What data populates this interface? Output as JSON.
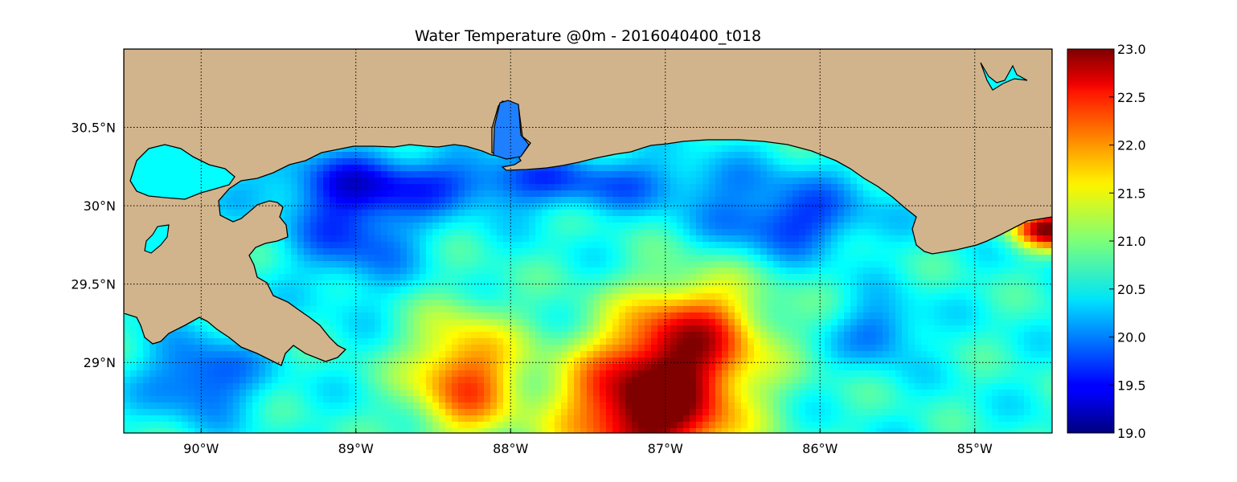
{
  "title": "Water Temperature @0m - 2016040400_t018",
  "map": {
    "lon_range": [
      -90.5,
      -84.5
    ],
    "lat_range": [
      28.55,
      31.0
    ],
    "land_color": "#D2B48C",
    "grid": "dotted",
    "x_ticks": [
      {
        "lon": -90,
        "label": "90°W"
      },
      {
        "lon": -89,
        "label": "89°W"
      },
      {
        "lon": -88,
        "label": "88°W"
      },
      {
        "lon": -87,
        "label": "87°W"
      },
      {
        "lon": -86,
        "label": "86°W"
      },
      {
        "lon": -85,
        "label": "85°W"
      }
    ],
    "y_ticks": [
      {
        "lat": 29.0,
        "label": "29°N"
      },
      {
        "lat": 29.5,
        "label": "29.5°N"
      },
      {
        "lat": 30.0,
        "label": "30°N"
      },
      {
        "lat": 30.5,
        "label": "30.5°N"
      }
    ]
  },
  "colorbar": {
    "colormap": "jet",
    "min": 19.0,
    "max": 23.0,
    "ticks": [
      "19.0",
      "19.5",
      "20.0",
      "20.5",
      "21.0",
      "21.5",
      "22.0",
      "22.5",
      "23.0"
    ]
  },
  "chart_data": {
    "type": "heatmap",
    "title": "Water Temperature @0m - 2016040400_t018",
    "variable": "Water Temperature",
    "depth": "0m",
    "run": "2016040400_t018",
    "x": "longitude",
    "y": "latitude",
    "xlim": [
      -90.5,
      -84.5
    ],
    "ylim": [
      28.55,
      31.0
    ],
    "color_range": [
      19.0,
      23.0
    ],
    "features": [
      {
        "region": "far SE corner near 84.6W 29.8N",
        "value": 23.0
      },
      {
        "region": "warm tongue centered 87W 28.7-29.2N",
        "value": 23.0
      },
      {
        "region": "warm tongue 88.3W 28.7-29.3N",
        "value": 22.2
      },
      {
        "region": "cool band along coast 30.0-30.3N",
        "value": 19.8
      },
      {
        "region": "cool eddy 86.3W 29.9N",
        "value": 19.8
      },
      {
        "region": "cool patch 90W 28.9N",
        "value": 19.7
      },
      {
        "region": "mid-shelf background",
        "value": 20.6
      }
    ]
  }
}
